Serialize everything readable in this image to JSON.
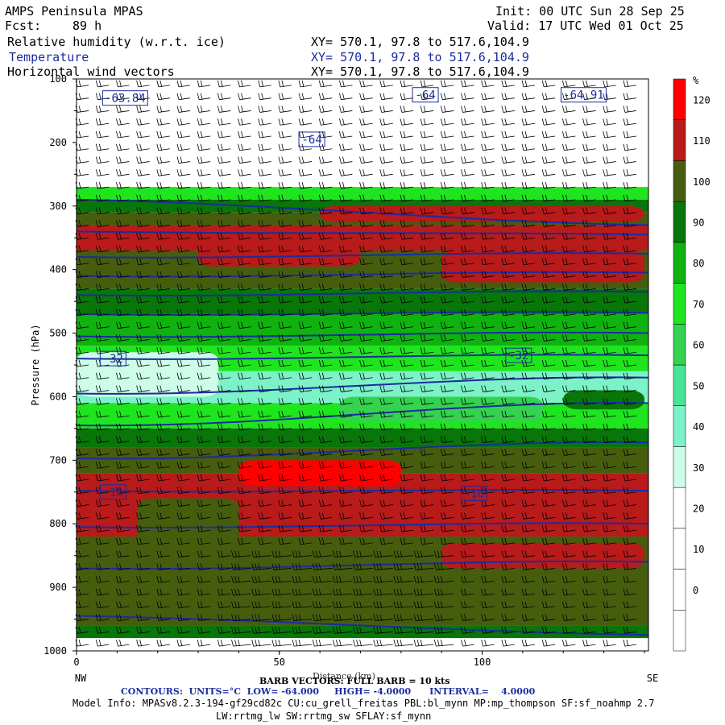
{
  "header": {
    "model": "AMPS Peninsula MPAS",
    "init": "Init: 00 UTC Sun 28 Sep 25",
    "fcst_label": "Fcst:",
    "fcst_value": "89 h",
    "valid": "Valid: 17 UTC Wed 01 Oct 25",
    "fields": [
      {
        "name": "Relative humidity (w.r.t. ice)",
        "xy": "XY= 570.1, 97.8 to 517.6,104.9"
      },
      {
        "name": "Temperature",
        "xy": "XY= 570.1, 97.8 to 517.6,104.9"
      },
      {
        "name": "Horizontal wind vectors",
        "xy": "XY= 570.1, 97.8 to 517.6,104.9"
      }
    ]
  },
  "colors": {
    "contour": "#1c2ca0",
    "barb": "#000000",
    "palette": [
      "#ffffff",
      "#ffffff",
      "#ffffff",
      "#ffffff",
      "#cdfce9",
      "#7cf2c8",
      "#49e297",
      "#35d24f",
      "#1fe51f",
      "#0fb20f",
      "#087608",
      "#475d0e",
      "#b91a1a",
      "#fe0000"
    ]
  },
  "chart_data": {
    "type": "heatmap",
    "title": "Relative humidity (w.r.t. ice)",
    "xlabel": "Distance (km)",
    "ylabel": "Pressure (hPa)",
    "xlim": [
      0,
      141
    ],
    "ylim": [
      1000,
      100
    ],
    "x_ticks": [
      "0",
      "50",
      "100"
    ],
    "y_ticks": [
      "100",
      "200",
      "300",
      "400",
      "500",
      "600",
      "700",
      "800",
      "900",
      "1000"
    ],
    "endpoints": {
      "left": "NW",
      "right": "SE"
    },
    "colorbar": {
      "unit": "%",
      "ticks": [
        "0",
        "10",
        "20",
        "30",
        "40",
        "50",
        "60",
        "70",
        "80",
        "90",
        "100",
        "110",
        "120"
      ],
      "levels": [
        -10,
        0,
        10,
        20,
        30,
        40,
        50,
        60,
        70,
        80,
        90,
        100,
        110,
        120,
        130
      ]
    },
    "rh_bands": [
      {
        "p_top": 100,
        "p_bottom": 270,
        "rh": 5
      },
      {
        "p_top": 270,
        "p_bottom": 290,
        "rh": 75
      },
      {
        "p_top": 290,
        "p_bottom": 310,
        "rh": 95
      },
      {
        "p_top": 310,
        "p_bottom": 330,
        "rh": 105
      },
      {
        "p_top": 330,
        "p_bottom": 370,
        "rh": 112
      },
      {
        "p_top": 370,
        "p_bottom": 430,
        "rh": 104
      },
      {
        "p_top": 430,
        "p_bottom": 470,
        "rh": 95
      },
      {
        "p_top": 470,
        "p_bottom": 520,
        "rh": 85
      },
      {
        "p_top": 520,
        "p_bottom": 560,
        "rh": 72
      },
      {
        "p_top": 560,
        "p_bottom": 610,
        "rh": 45
      },
      {
        "p_top": 610,
        "p_bottom": 650,
        "rh": 70
      },
      {
        "p_top": 650,
        "p_bottom": 680,
        "rh": 92
      },
      {
        "p_top": 680,
        "p_bottom": 720,
        "rh": 105
      },
      {
        "p_top": 720,
        "p_bottom": 820,
        "rh": 112
      },
      {
        "p_top": 820,
        "p_bottom": 960,
        "rh": 104
      },
      {
        "p_top": 960,
        "p_bottom": 980,
        "rh": 90
      },
      {
        "p_top": 980,
        "p_bottom": 1000,
        "rh": 5
      }
    ],
    "rh_patches": [
      {
        "x0": 60,
        "x1": 140,
        "p_top": 300,
        "p_bottom": 325,
        "rh": 112
      },
      {
        "x0": 30,
        "x1": 70,
        "p_top": 360,
        "p_bottom": 395,
        "rh": 112
      },
      {
        "x0": 90,
        "x1": 140,
        "p_top": 370,
        "p_bottom": 420,
        "rh": 112
      },
      {
        "x0": 0,
        "x1": 35,
        "p_top": 530,
        "p_bottom": 600,
        "rh": 35
      },
      {
        "x0": 65,
        "x1": 115,
        "p_top": 600,
        "p_bottom": 640,
        "rh": 60
      },
      {
        "x0": 120,
        "x1": 140,
        "p_top": 590,
        "p_bottom": 620,
        "rh": 90
      },
      {
        "x0": 40,
        "x1": 80,
        "p_top": 700,
        "p_bottom": 740,
        "rh": 125
      },
      {
        "x0": 90,
        "x1": 140,
        "p_top": 830,
        "p_bottom": 870,
        "rh": 112
      },
      {
        "x0": 15,
        "x1": 40,
        "p_top": 760,
        "p_bottom": 860,
        "rh": 104
      }
    ],
    "temperature_contours": {
      "units": "°C",
      "labels": [
        {
          "text": "-63.84",
          "x": 12,
          "p": 130
        },
        {
          "text": "-64",
          "x": 86,
          "p": 125
        },
        {
          "text": "-64.91",
          "x": 125,
          "p": 125
        },
        {
          "text": "-64",
          "x": 58,
          "p": 195
        },
        {
          "text": "-32",
          "x": 9,
          "p": 540
        },
        {
          "text": "-32",
          "x": 109,
          "p": 535
        },
        {
          "text": "-16",
          "x": 9,
          "p": 750
        },
        {
          "text": "-16",
          "x": 98,
          "p": 752
        }
      ],
      "lines": [
        {
          "p_left": 290,
          "p_right": 330
        },
        {
          "p_left": 340,
          "p_right": 345
        },
        {
          "p_left": 380,
          "p_right": 375
        },
        {
          "p_left": 410,
          "p_right": 405
        },
        {
          "p_left": 440,
          "p_right": 435
        },
        {
          "p_left": 470,
          "p_right": 468
        },
        {
          "p_left": 505,
          "p_right": 500
        },
        {
          "p_left": 540,
          "p_right": 535
        },
        {
          "p_left": 595,
          "p_right": 570
        },
        {
          "p_left": 645,
          "p_right": 610
        },
        {
          "p_left": 697,
          "p_right": 672
        },
        {
          "p_left": 748,
          "p_right": 748
        },
        {
          "p_left": 805,
          "p_right": 800
        },
        {
          "p_left": 870,
          "p_right": 860
        },
        {
          "p_left": 945,
          "p_right": 975
        }
      ]
    },
    "wind_barbs": {
      "full_barb_kts": 10
    }
  },
  "footer": {
    "barb_line_a": "BARB VECTORS: FULL BARB = 10 kts",
    "barb_line_b": "Distance (km)",
    "contours": "CONTOURS:  UNITS=°C  LOW= -64.000     HIGH= -4.0000      INTERVAL=    4.0000",
    "model_info": "Model Info: MPASv8.2.3-194-gf29cd82c CU:cu_grell_freitas PBL:bl_mynn MP:mp_thompson SF:sf_noahmp 2.7",
    "model_info2": "LW:rrtmg_lw SW:rrtmg_sw SFLAY:sf_mynn"
  }
}
